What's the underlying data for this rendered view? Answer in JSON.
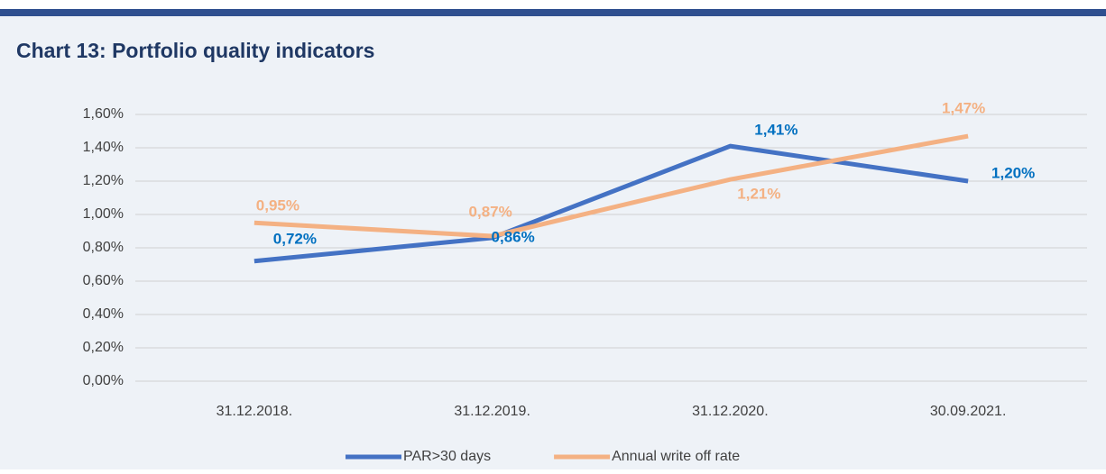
{
  "chart_data": {
    "type": "line",
    "title": "Chart 13: Portfolio quality indicators",
    "categories": [
      "31.12.2018.",
      "31.12.2019.",
      "31.12.2020.",
      "30.09.2021."
    ],
    "series": [
      {
        "name": "PAR>30 days",
        "color": "#4472c4",
        "label_color": "#0070c0",
        "values": [
          0.72,
          0.86,
          1.41,
          1.2
        ],
        "value_labels": [
          "0,72%",
          "0,86%",
          "1,41%",
          "1,20%"
        ]
      },
      {
        "name": "Annual write off rate",
        "color": "#f4b183",
        "label_color": "#f4b183",
        "values": [
          0.95,
          0.87,
          1.21,
          1.47
        ],
        "value_labels": [
          "0,95%",
          "0,87%",
          "1,21%",
          "1,47%"
        ]
      }
    ],
    "ylim": [
      0,
      1.6
    ],
    "yticks": [
      {
        "value": 0,
        "label": "0,00%"
      },
      {
        "value": 0.2,
        "label": "0,20%"
      },
      {
        "value": 0.4,
        "label": "0,40%"
      },
      {
        "value": 0.6,
        "label": "0,60%"
      },
      {
        "value": 0.8,
        "label": "0,80%"
      },
      {
        "value": 1.0,
        "label": "1,00%"
      },
      {
        "value": 1.2,
        "label": "1,20%"
      },
      {
        "value": 1.4,
        "label": "1,40%"
      },
      {
        "value": 1.6,
        "label": "1,60%"
      }
    ],
    "grid": true,
    "legend": "bottom"
  }
}
